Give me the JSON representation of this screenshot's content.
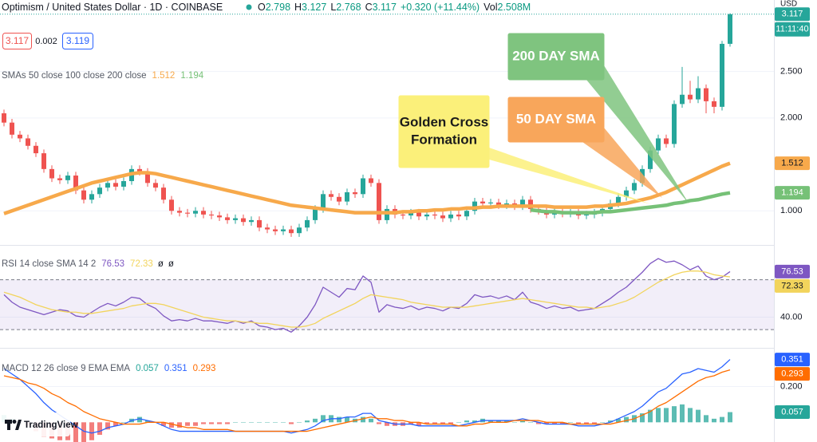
{
  "header": {
    "symbol": "Optimism / United States Dollar · 1D · COINBASE",
    "ohlc": [
      {
        "label": "O",
        "value": "2.798"
      },
      {
        "label": "H",
        "value": "3.127"
      },
      {
        "label": "L",
        "value": "2.768"
      },
      {
        "label": "C",
        "value": "3.117"
      }
    ],
    "change": "+0.320 (+11.44%)",
    "volume_label": "Vol",
    "volume": "2.508M"
  },
  "quote": {
    "bid": "3.117",
    "spread": "0.002",
    "ask": "3.119"
  },
  "axis_currency": "USD",
  "countdown": "11:11:40",
  "watermark": "TradingView",
  "chart_data": [
    {
      "type": "candlestick",
      "legend": "SMAs 50 close 100 close 200 close",
      "open": [
        2.05,
        1.95,
        1.82,
        1.78,
        1.7,
        1.62,
        1.45,
        1.35,
        1.33,
        1.38,
        1.22,
        1.12,
        1.18,
        1.25,
        1.3,
        1.26,
        1.32,
        1.45,
        1.42,
        1.3,
        1.25,
        1.12,
        1.0,
        0.98,
        0.97,
        1.0,
        0.96,
        0.95,
        0.93,
        0.9,
        0.92,
        0.88,
        0.9,
        0.82,
        0.8,
        0.78,
        0.8,
        0.76,
        0.82,
        0.9,
        1.02,
        1.18,
        1.15,
        1.1,
        1.2,
        1.18,
        1.35,
        1.3,
        0.9,
        1.02,
        0.96,
        0.95,
        0.98,
        0.94,
        0.96,
        0.95,
        0.92,
        0.96,
        0.94,
        1.0,
        1.1,
        1.08,
        1.09,
        1.06,
        1.08,
        1.05,
        1.12,
        1.02,
        1.0,
        0.96,
        0.99,
        0.97,
        0.98,
        0.95,
        0.96,
        0.98,
        1.02,
        1.08,
        1.15,
        1.22,
        1.3,
        1.45,
        1.65,
        1.78,
        1.72,
        2.15,
        2.25,
        2.2,
        2.32,
        2.18,
        2.12,
        2.798
      ],
      "high": [
        2.09,
        1.99,
        1.86,
        1.82,
        1.74,
        1.66,
        1.49,
        1.39,
        1.42,
        1.42,
        1.26,
        1.22,
        1.29,
        1.34,
        1.34,
        1.36,
        1.49,
        1.49,
        1.46,
        1.34,
        1.29,
        1.16,
        1.04,
        1.02,
        1.04,
        1.04,
        1.0,
        0.99,
        0.97,
        0.96,
        0.96,
        0.94,
        0.94,
        0.86,
        0.84,
        0.84,
        0.84,
        0.86,
        0.94,
        1.06,
        1.22,
        1.22,
        1.19,
        1.24,
        1.24,
        1.39,
        1.39,
        1.34,
        1.06,
        1.06,
        1.0,
        1.02,
        1.02,
        1.0,
        1.0,
        0.99,
        1.0,
        1.0,
        1.04,
        1.14,
        1.14,
        1.13,
        1.13,
        1.12,
        1.12,
        1.16,
        1.16,
        1.06,
        1.04,
        1.03,
        1.03,
        1.02,
        1.02,
        1.0,
        1.02,
        1.06,
        1.12,
        1.19,
        1.26,
        1.34,
        1.49,
        1.69,
        1.82,
        1.82,
        2.19,
        2.55,
        2.4,
        2.45,
        2.36,
        2.22,
        2.83,
        3.127
      ],
      "low": [
        1.91,
        1.78,
        1.74,
        1.66,
        1.58,
        1.41,
        1.31,
        1.29,
        1.29,
        1.18,
        1.08,
        1.08,
        1.14,
        1.21,
        1.22,
        1.22,
        1.28,
        1.38,
        1.26,
        1.21,
        1.08,
        0.96,
        0.94,
        0.93,
        0.93,
        0.92,
        0.91,
        0.89,
        0.86,
        0.86,
        0.84,
        0.84,
        0.78,
        0.76,
        0.74,
        0.74,
        0.72,
        0.72,
        0.78,
        0.86,
        0.98,
        1.11,
        1.06,
        1.06,
        1.14,
        1.14,
        1.26,
        0.86,
        0.86,
        0.92,
        0.91,
        0.91,
        0.9,
        0.9,
        0.91,
        0.88,
        0.88,
        0.9,
        0.9,
        0.96,
        1.04,
        1.04,
        1.02,
        1.02,
        1.01,
        1.01,
        0.98,
        0.96,
        0.92,
        0.92,
        0.93,
        0.93,
        0.91,
        0.91,
        0.92,
        0.94,
        0.98,
        1.04,
        1.11,
        1.18,
        1.26,
        1.41,
        1.61,
        1.68,
        1.68,
        2.11,
        2.16,
        2.16,
        2.05,
        2.05,
        2.08,
        2.768
      ],
      "close": [
        1.95,
        1.82,
        1.78,
        1.7,
        1.62,
        1.45,
        1.35,
        1.33,
        1.38,
        1.22,
        1.12,
        1.18,
        1.25,
        1.3,
        1.26,
        1.32,
        1.45,
        1.42,
        1.3,
        1.25,
        1.12,
        1.0,
        0.98,
        0.97,
        1.0,
        0.96,
        0.95,
        0.93,
        0.9,
        0.92,
        0.88,
        0.9,
        0.82,
        0.8,
        0.78,
        0.8,
        0.76,
        0.82,
        0.9,
        1.02,
        1.18,
        1.15,
        1.1,
        1.2,
        1.18,
        1.35,
        1.3,
        0.9,
        1.02,
        0.96,
        0.95,
        0.98,
        0.94,
        0.96,
        0.95,
        0.92,
        0.96,
        0.94,
        1.0,
        1.1,
        1.08,
        1.09,
        1.06,
        1.08,
        1.05,
        1.12,
        1.02,
        1.0,
        0.96,
        0.99,
        0.97,
        0.98,
        0.95,
        0.96,
        0.98,
        1.02,
        1.08,
        1.15,
        1.22,
        1.3,
        1.45,
        1.65,
        1.78,
        1.72,
        2.15,
        2.25,
        2.2,
        2.32,
        2.18,
        2.12,
        2.798,
        3.117
      ],
      "up_color": "#26a69a",
      "down_color": "#ef5350",
      "last_label": "3.117",
      "ylim": [
        0.65,
        3.27
      ],
      "yticks": [
        {
          "value": 1,
          "label": "1.000"
        },
        {
          "value": 2,
          "label": "2.000"
        },
        {
          "value": 2.5,
          "label": "2.500"
        }
      ],
      "grid": true,
      "series": [
        {
          "color": "#f7a94b",
          "value_label": "1.512",
          "values": [
            0.97,
            1.0,
            1.03,
            1.06,
            1.09,
            1.12,
            1.15,
            1.18,
            1.21,
            1.24,
            1.27,
            1.3,
            1.32,
            1.34,
            1.36,
            1.38,
            1.4,
            1.41,
            1.41,
            1.4,
            1.38,
            1.36,
            1.34,
            1.32,
            1.3,
            1.28,
            1.26,
            1.24,
            1.22,
            1.2,
            1.18,
            1.16,
            1.14,
            1.12,
            1.1,
            1.08,
            1.06,
            1.05,
            1.04,
            1.03,
            1.02,
            1.01,
            1.0,
            0.99,
            0.98,
            0.98,
            0.98,
            0.98,
            0.98,
            0.98,
            0.99,
            0.99,
            1.0,
            1.0,
            1.01,
            1.01,
            1.02,
            1.02,
            1.03,
            1.03,
            1.04,
            1.04,
            1.05,
            1.05,
            1.05,
            1.05,
            1.05,
            1.05,
            1.05,
            1.04,
            1.04,
            1.04,
            1.04,
            1.04,
            1.05,
            1.05,
            1.06,
            1.07,
            1.08,
            1.1,
            1.12,
            1.14,
            1.17,
            1.2,
            1.24,
            1.28,
            1.32,
            1.36,
            1.4,
            1.44,
            1.48,
            1.512
          ]
        },
        {
          "color": "#76c177",
          "value_label": "1.194",
          "values": [
            null,
            null,
            null,
            null,
            null,
            null,
            null,
            null,
            null,
            null,
            null,
            null,
            null,
            null,
            null,
            null,
            null,
            null,
            null,
            null,
            null,
            null,
            null,
            null,
            null,
            null,
            null,
            null,
            null,
            null,
            null,
            null,
            null,
            null,
            null,
            null,
            null,
            null,
            null,
            null,
            null,
            null,
            null,
            null,
            null,
            null,
            null,
            null,
            null,
            null,
            null,
            null,
            null,
            null,
            null,
            null,
            null,
            null,
            null,
            null,
            null,
            null,
            null,
            null,
            null,
            null,
            1.01,
            1.0,
            0.99,
            0.99,
            0.98,
            0.98,
            0.98,
            0.98,
            0.98,
            0.99,
            0.99,
            1.0,
            1.01,
            1.02,
            1.03,
            1.04,
            1.05,
            1.06,
            1.08,
            1.09,
            1.11,
            1.12,
            1.14,
            1.16,
            1.18,
            1.194
          ]
        }
      ],
      "annotations": [
        {
          "lines": [
            "200 DAY SMA"
          ],
          "color": "#7fc47f",
          "text_color": "#ffffff"
        },
        {
          "lines": [
            "50 DAY SMA"
          ],
          "color": "#f8a65b",
          "text_color": "#ffffff"
        },
        {
          "lines": [
            "Golden Cross",
            "Formation"
          ],
          "color": "#fbf07a",
          "text_color": "#1b1b1b"
        }
      ]
    },
    {
      "type": "line",
      "legend": "RSI 14 close SMA 14 2",
      "legend_extra": [
        "ø",
        "ø"
      ],
      "ylim": [
        16,
        96
      ],
      "yticks": [
        {
          "value": 40,
          "label": "40.00"
        }
      ],
      "bands": [
        30,
        70
      ],
      "band_color": "#7e57c2",
      "series": [
        {
          "color": "#7e57c2",
          "value_label": "76.53",
          "values": [
            58,
            52,
            48,
            46,
            44,
            42,
            44,
            46,
            45,
            41,
            40,
            44,
            48,
            51,
            49,
            52,
            56,
            55,
            50,
            47,
            41,
            37,
            38,
            37,
            39,
            37,
            37,
            36,
            35,
            37,
            35,
            37,
            33,
            32,
            30,
            31,
            28,
            33,
            40,
            50,
            64,
            60,
            56,
            63,
            62,
            73,
            68,
            44,
            50,
            48,
            47,
            49,
            46,
            48,
            47,
            45,
            48,
            47,
            51,
            58,
            56,
            57,
            55,
            57,
            54,
            60,
            52,
            50,
            47,
            49,
            47,
            48,
            45,
            46,
            47,
            51,
            55,
            60,
            64,
            70,
            76,
            83,
            87,
            84,
            85,
            82,
            78,
            81,
            73,
            70,
            72,
            76.53
          ]
        },
        {
          "color": "#f2d45c",
          "value_label": "72.33",
          "values": [
            60,
            58,
            56,
            53,
            50,
            48,
            46,
            45,
            44,
            44,
            43,
            43,
            44,
            45,
            46,
            47,
            49,
            50,
            51,
            51,
            50,
            48,
            46,
            44,
            42,
            40,
            39,
            38,
            37,
            37,
            36,
            36,
            35,
            35,
            34,
            33,
            32,
            32,
            33,
            35,
            39,
            42,
            45,
            48,
            51,
            55,
            58,
            57,
            56,
            55,
            54,
            52,
            51,
            50,
            49,
            48,
            48,
            48,
            48,
            49,
            50,
            51,
            52,
            53,
            54,
            55,
            54,
            53,
            52,
            51,
            50,
            49,
            48,
            48,
            47,
            48,
            49,
            51,
            53,
            56,
            60,
            64,
            68,
            71,
            74,
            76,
            77,
            77,
            76,
            74,
            73,
            72.33
          ]
        }
      ]
    },
    {
      "type": "macd",
      "legend": "MACD 12 26 close 9 EMA EMA",
      "ylim": [
        -0.11,
        0.407
      ],
      "yticks": [
        {
          "value": 0.2,
          "label": "0.200"
        }
      ],
      "series": [
        {
          "kind": "bar",
          "color": "#26a69a",
          "down_color": "#ef5350",
          "value_label": "0.057",
          "values": [
            0.04,
            0.02,
            0.0,
            -0.02,
            -0.05,
            -0.08,
            -0.09,
            -0.1,
            -0.1,
            -0.11,
            -0.11,
            -0.1,
            -0.07,
            -0.04,
            -0.02,
            0.0,
            0.02,
            0.03,
            0.01,
            0.0,
            -0.02,
            -0.03,
            -0.03,
            -0.02,
            -0.02,
            -0.01,
            -0.01,
            -0.01,
            -0.01,
            0.0,
            0.0,
            0.0,
            0.0,
            0.0,
            0.0,
            0.0,
            -0.01,
            0.0,
            0.01,
            0.02,
            0.04,
            0.04,
            0.03,
            0.03,
            0.02,
            0.03,
            0.02,
            -0.01,
            -0.02,
            -0.02,
            -0.02,
            -0.01,
            -0.02,
            -0.01,
            -0.01,
            -0.01,
            -0.01,
            0.0,
            0.01,
            0.01,
            0.02,
            0.01,
            0.01,
            0.01,
            0.0,
            0.01,
            0.0,
            -0.01,
            -0.01,
            -0.01,
            -0.01,
            0.0,
            -0.01,
            -0.01,
            -0.01,
            0.0,
            0.01,
            0.02,
            0.03,
            0.04,
            0.05,
            0.07,
            0.08,
            0.08,
            0.09,
            0.1,
            0.08,
            0.07,
            0.04,
            0.02,
            0.03,
            0.057
          ]
        },
        {
          "color": "#2962ff",
          "value_label": "0.351",
          "values": [
            0.3,
            0.27,
            0.24,
            0.2,
            0.16,
            0.11,
            0.07,
            0.04,
            0.01,
            -0.02,
            -0.05,
            -0.06,
            -0.05,
            -0.03,
            -0.02,
            -0.01,
            0.01,
            0.02,
            0.01,
            0.0,
            -0.02,
            -0.04,
            -0.05,
            -0.05,
            -0.05,
            -0.05,
            -0.05,
            -0.05,
            -0.05,
            -0.05,
            -0.05,
            -0.05,
            -0.05,
            -0.05,
            -0.05,
            -0.05,
            -0.06,
            -0.05,
            -0.04,
            -0.02,
            0.01,
            0.02,
            0.02,
            0.03,
            0.03,
            0.05,
            0.05,
            0.01,
            0.0,
            -0.01,
            -0.01,
            -0.01,
            -0.02,
            -0.02,
            -0.02,
            -0.02,
            -0.02,
            -0.02,
            -0.01,
            0.0,
            0.01,
            0.01,
            0.01,
            0.01,
            0.01,
            0.02,
            0.01,
            0.0,
            -0.01,
            -0.01,
            -0.01,
            -0.01,
            -0.02,
            -0.02,
            -0.02,
            -0.01,
            0.0,
            0.02,
            0.04,
            0.06,
            0.09,
            0.13,
            0.17,
            0.19,
            0.23,
            0.27,
            0.28,
            0.3,
            0.29,
            0.28,
            0.31,
            0.351
          ]
        },
        {
          "color": "#ff6d00",
          "value_label": "0.293",
          "values": [
            0.26,
            0.25,
            0.24,
            0.22,
            0.21,
            0.19,
            0.16,
            0.14,
            0.11,
            0.09,
            0.06,
            0.04,
            0.02,
            0.01,
            0.0,
            -0.01,
            -0.01,
            -0.01,
            0.0,
            0.0,
            0.0,
            -0.01,
            -0.02,
            -0.03,
            -0.03,
            -0.04,
            -0.04,
            -0.04,
            -0.04,
            -0.05,
            -0.05,
            -0.05,
            -0.05,
            -0.05,
            -0.05,
            -0.05,
            -0.05,
            -0.05,
            -0.05,
            -0.04,
            -0.03,
            -0.02,
            -0.01,
            0.0,
            0.01,
            0.02,
            0.03,
            0.02,
            0.02,
            0.01,
            0.01,
            0.0,
            0.0,
            -0.01,
            -0.01,
            -0.01,
            -0.01,
            -0.02,
            -0.02,
            -0.01,
            -0.01,
            0.0,
            0.0,
            0.0,
            0.01,
            0.01,
            0.01,
            0.01,
            0.0,
            0.0,
            0.0,
            -0.01,
            -0.01,
            -0.01,
            -0.01,
            -0.01,
            -0.01,
            0.0,
            0.01,
            0.02,
            0.04,
            0.06,
            0.09,
            0.11,
            0.14,
            0.17,
            0.2,
            0.23,
            0.25,
            0.26,
            0.28,
            0.293
          ]
        }
      ]
    }
  ]
}
